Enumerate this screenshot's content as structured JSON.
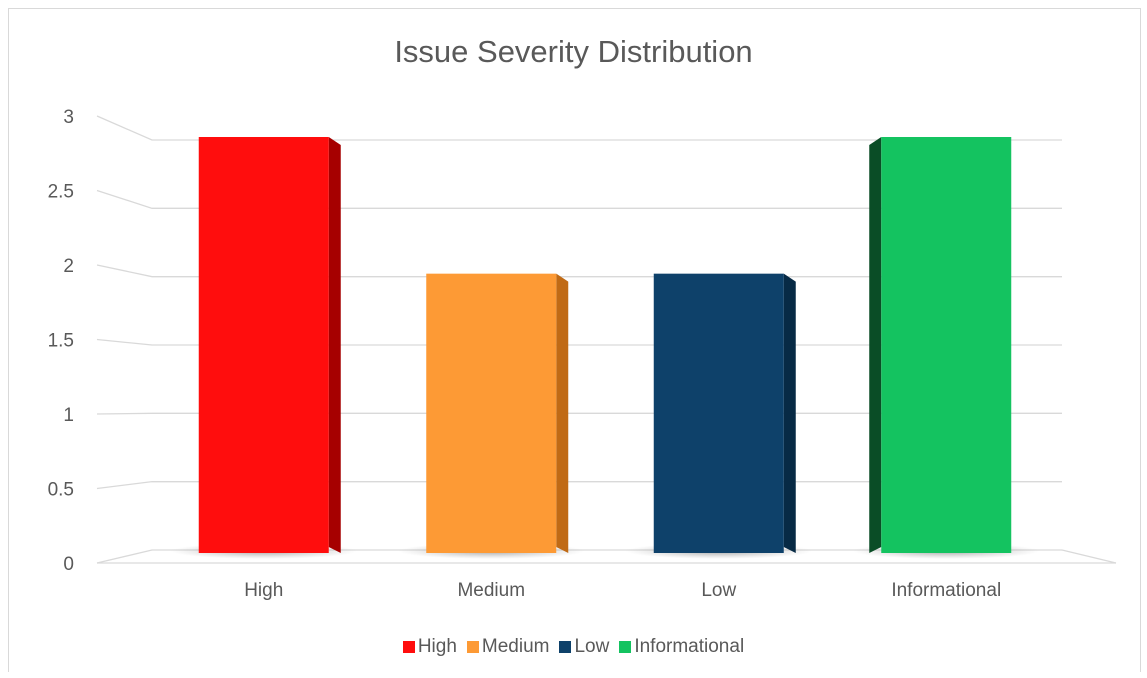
{
  "chart_data": {
    "type": "bar",
    "title": "Issue Severity Distribution",
    "categories": [
      "High",
      "Medium",
      "Low",
      "Informational"
    ],
    "values": [
      3,
      2,
      2,
      3
    ],
    "colors": [
      "#ff0d0d",
      "#fd9a35",
      "#0e416a",
      "#14c360"
    ],
    "side_colors": [
      "#a60000",
      "#c06a15",
      "#072a45",
      "#0a4d26"
    ],
    "ylim": [
      0,
      3
    ],
    "yticks": [
      "0",
      "0.5",
      "1",
      "1.5",
      "2",
      "2.5",
      "3"
    ],
    "grid": true,
    "legend_position": "bottom",
    "legend": [
      "High",
      "Medium",
      "Low",
      "Informational"
    ]
  }
}
